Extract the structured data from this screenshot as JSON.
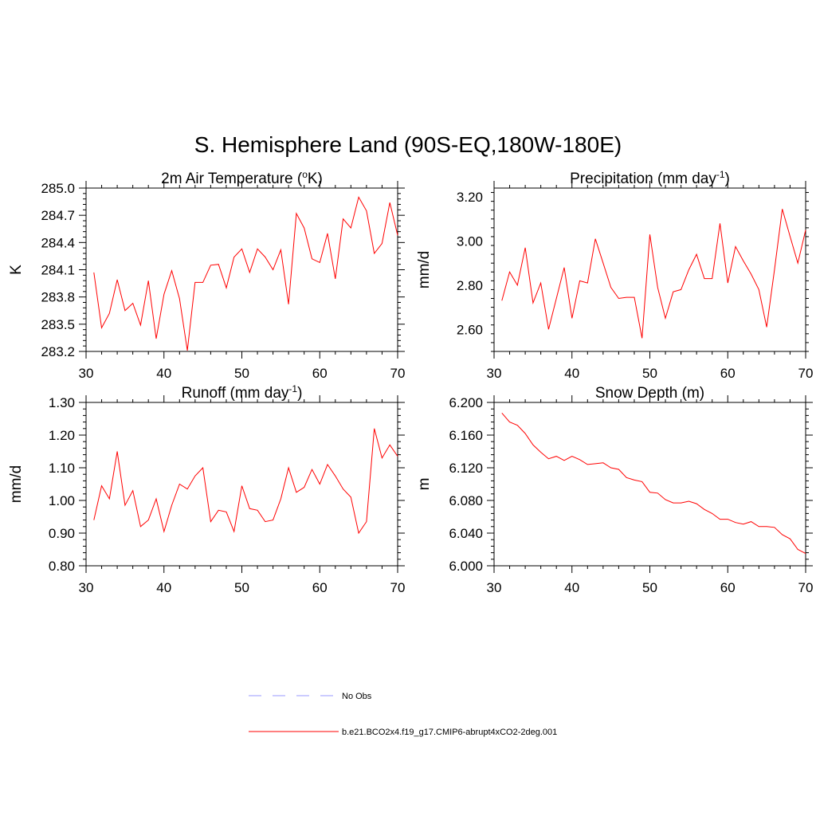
{
  "figure": {
    "title": "S. Hemisphere Land (90S-EQ,180W-180E)"
  },
  "colors": {
    "model_line": "#ff0000",
    "obs_line": "#9999ff",
    "axis": "#000000"
  },
  "chart_data": [
    {
      "type": "line",
      "title": "2m Air Temperature (",
      "title_sup": "o",
      "title_tail": "K)",
      "xlabel": "",
      "ylabel": "K",
      "xlim": [
        30,
        70
      ],
      "ylim": [
        283.2,
        285.0
      ],
      "xticks": [
        30,
        40,
        50,
        60,
        70
      ],
      "xtick_labels": [
        "30",
        "40",
        "50",
        "60",
        "70"
      ],
      "yticks": [
        283.2,
        283.5,
        283.8,
        284.1,
        284.4,
        284.7,
        285.0
      ],
      "ytick_labels": [
        "283.2",
        "283.5",
        "283.8",
        "284.1",
        "284.4",
        "284.7",
        "285.0"
      ],
      "x": [
        31,
        32,
        33,
        34,
        35,
        36,
        37,
        38,
        39,
        40,
        41,
        42,
        43,
        44,
        45,
        46,
        47,
        48,
        49,
        50,
        51,
        52,
        53,
        54,
        55,
        56,
        57,
        58,
        59,
        60,
        61,
        62,
        63,
        64,
        65,
        66,
        67,
        68,
        69,
        70
      ],
      "series": [
        {
          "name": "b.e21.BCO2x4.f19_g17.CMIP6-abrupt4xCO2-2deg.001",
          "values": [
            284.07,
            283.46,
            283.62,
            283.99,
            283.65,
            283.73,
            283.49,
            283.98,
            283.34,
            283.83,
            284.09,
            283.78,
            283.21,
            283.96,
            283.96,
            284.15,
            284.16,
            283.9,
            284.24,
            284.33,
            284.07,
            284.33,
            284.24,
            284.1,
            284.32,
            283.72,
            284.72,
            284.56,
            284.22,
            284.18,
            284.5,
            284.0,
            284.66,
            284.56,
            284.9,
            284.75,
            284.28,
            284.39,
            284.84,
            284.48
          ]
        }
      ]
    },
    {
      "type": "line",
      "title": "Precipitation (mm day",
      "title_sup": "-1",
      "title_tail": ")",
      "xlabel": "",
      "ylabel": "mm/d",
      "xlim": [
        30,
        70
      ],
      "ylim": [
        2.5,
        3.24
      ],
      "xticks": [
        30,
        40,
        50,
        60,
        70
      ],
      "xtick_labels": [
        "30",
        "40",
        "50",
        "60",
        "70"
      ],
      "yticks": [
        2.6,
        2.8,
        3.0,
        3.2
      ],
      "ytick_labels": [
        "2.60",
        "2.80",
        "3.00",
        "3.20"
      ],
      "x": [
        31,
        32,
        33,
        34,
        35,
        36,
        37,
        38,
        39,
        40,
        41,
        42,
        43,
        44,
        45,
        46,
        47,
        48,
        49,
        50,
        51,
        52,
        53,
        54,
        55,
        56,
        57,
        58,
        59,
        60,
        61,
        62,
        63,
        64,
        65,
        66,
        67,
        68,
        69,
        70
      ],
      "series": [
        {
          "name": "b.e21.BCO2x4.f19_g17.CMIP6-abrupt4xCO2-2deg.001",
          "values": [
            2.73,
            2.86,
            2.8,
            2.97,
            2.72,
            2.81,
            2.6,
            2.74,
            2.88,
            2.65,
            2.82,
            2.81,
            3.01,
            2.9,
            2.79,
            2.74,
            2.745,
            2.745,
            2.56,
            3.03,
            2.79,
            2.65,
            2.77,
            2.78,
            2.87,
            2.94,
            2.83,
            2.83,
            3.08,
            2.81,
            2.975,
            2.91,
            2.85,
            2.78,
            2.61,
            2.87,
            3.145,
            3.02,
            2.9,
            3.05
          ]
        }
      ]
    },
    {
      "type": "line",
      "title": "Runoff (mm day",
      "title_sup": "-1",
      "title_tail": ")",
      "xlabel": "",
      "ylabel": "mm/d",
      "xlim": [
        30,
        70
      ],
      "ylim": [
        0.8,
        1.3
      ],
      "xticks": [
        30,
        40,
        50,
        60,
        70
      ],
      "xtick_labels": [
        "30",
        "40",
        "50",
        "60",
        "70"
      ],
      "yticks": [
        0.8,
        0.9,
        1.0,
        1.1,
        1.2,
        1.3
      ],
      "ytick_labels": [
        "0.80",
        "0.90",
        "1.00",
        "1.10",
        "1.20",
        "1.30"
      ],
      "x": [
        31,
        32,
        33,
        34,
        35,
        36,
        37,
        38,
        39,
        40,
        41,
        42,
        43,
        44,
        45,
        46,
        47,
        48,
        49,
        50,
        51,
        52,
        53,
        54,
        55,
        56,
        57,
        58,
        59,
        60,
        61,
        62,
        63,
        64,
        65,
        66,
        67,
        68,
        69,
        70
      ],
      "series": [
        {
          "name": "b.e21.BCO2x4.f19_g17.CMIP6-abrupt4xCO2-2deg.001",
          "values": [
            0.94,
            1.045,
            1.005,
            1.15,
            0.985,
            1.03,
            0.92,
            0.94,
            1.005,
            0.905,
            0.985,
            1.05,
            1.035,
            1.075,
            1.1,
            0.935,
            0.97,
            0.965,
            0.905,
            1.045,
            0.975,
            0.97,
            0.935,
            0.94,
            1.005,
            1.1,
            1.025,
            1.04,
            1.095,
            1.05,
            1.11,
            1.075,
            1.035,
            1.01,
            0.9,
            0.935,
            1.22,
            1.13,
            1.17,
            1.135
          ]
        }
      ]
    },
    {
      "type": "line",
      "title": "Snow Depth (m)",
      "title_sup": "",
      "title_tail": "",
      "xlabel": "",
      "ylabel": "m",
      "xlim": [
        30,
        70
      ],
      "ylim": [
        6.0,
        6.2
      ],
      "xticks": [
        30,
        40,
        50,
        60,
        70
      ],
      "xtick_labels": [
        "30",
        "40",
        "50",
        "60",
        "70"
      ],
      "yticks": [
        6.0,
        6.04,
        6.08,
        6.12,
        6.16,
        6.2
      ],
      "ytick_labels": [
        "6.000",
        "6.040",
        "6.080",
        "6.120",
        "6.160",
        "6.200"
      ],
      "x": [
        31,
        32,
        33,
        34,
        35,
        36,
        37,
        38,
        39,
        40,
        41,
        42,
        43,
        44,
        45,
        46,
        47,
        48,
        49,
        50,
        51,
        52,
        53,
        54,
        55,
        56,
        57,
        58,
        59,
        60,
        61,
        62,
        63,
        64,
        65,
        66,
        67,
        68,
        69,
        70
      ],
      "series": [
        {
          "name": "b.e21.BCO2x4.f19_g17.CMIP6-abrupt4xCO2-2deg.001",
          "values": [
            6.187,
            6.176,
            6.172,
            6.162,
            6.148,
            6.139,
            6.131,
            6.134,
            6.129,
            6.134,
            6.13,
            6.124,
            6.125,
            6.126,
            6.12,
            6.118,
            6.108,
            6.105,
            6.103,
            6.09,
            6.089,
            6.081,
            6.077,
            6.077,
            6.079,
            6.076,
            6.069,
            6.064,
            6.057,
            6.057,
            6.053,
            6.051,
            6.054,
            6.048,
            6.048,
            6.047,
            6.038,
            6.033,
            6.02,
            6.015
          ]
        }
      ]
    }
  ],
  "legend": {
    "entries": [
      {
        "label": "No Obs",
        "style": "dashed",
        "color_key": "obs_line"
      },
      {
        "label": "b.e21.BCO2x4.f19_g17.CMIP6-abrupt4xCO2-2deg.001",
        "style": "solid",
        "color_key": "model_line"
      }
    ]
  }
}
